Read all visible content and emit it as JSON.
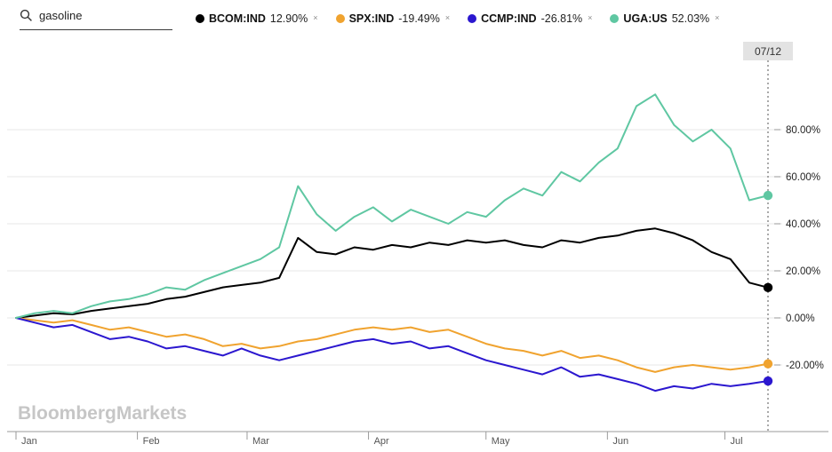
{
  "search": {
    "query": "gasoline"
  },
  "legend": {
    "close_glyph": "×"
  },
  "watermark": "BloombergMarkets",
  "chart_data": {
    "type": "line",
    "cursor_date": "07/12",
    "total_days": 192,
    "x_ticks": [
      {
        "label": "Jan",
        "day": 0
      },
      {
        "label": "Feb",
        "day": 31
      },
      {
        "label": "Mar",
        "day": 59
      },
      {
        "label": "Apr",
        "day": 90
      },
      {
        "label": "May",
        "day": 120
      },
      {
        "label": "Jun",
        "day": 151
      },
      {
        "label": "Jul",
        "day": 181
      }
    ],
    "y_ticks": [
      {
        "label": "80.00%",
        "value": 80
      },
      {
        "label": "60.00%",
        "value": 60
      },
      {
        "label": "40.00%",
        "value": 40
      },
      {
        "label": "20.00%",
        "value": 20
      },
      {
        "label": "0.00%",
        "value": 0
      },
      {
        "label": "-20.00%",
        "value": -20
      }
    ],
    "ylim": [
      -34,
      100
    ],
    "grid": true,
    "legend_position": "top",
    "series": [
      {
        "name": "BCOM:IND",
        "color": "#000000",
        "last_label": "12.90%",
        "values": [
          0,
          1,
          2,
          1.5,
          3,
          4,
          5,
          6,
          8,
          9,
          11,
          13,
          14,
          15,
          17,
          34,
          28,
          27,
          30,
          29,
          31,
          30,
          32,
          31,
          33,
          32,
          33,
          31,
          30,
          33,
          32,
          34,
          35,
          37,
          38,
          36,
          33,
          28,
          25,
          15,
          12.9
        ]
      },
      {
        "name": "SPX:IND",
        "color": "#f0a32f",
        "last_label": "-19.49%",
        "values": [
          0,
          -1,
          -2,
          -1,
          -3,
          -5,
          -4,
          -6,
          -8,
          -7,
          -9,
          -12,
          -11,
          -13,
          -12,
          -10,
          -9,
          -7,
          -5,
          -4,
          -5,
          -4,
          -6,
          -5,
          -8,
          -11,
          -13,
          -14,
          -16,
          -14,
          -17,
          -16,
          -18,
          -21,
          -23,
          -21,
          -20,
          -21,
          -22,
          -21,
          -19.49
        ]
      },
      {
        "name": "CCMP:IND",
        "color": "#2b17cf",
        "last_label": "-26.81%",
        "values": [
          0,
          -2,
          -4,
          -3,
          -6,
          -9,
          -8,
          -10,
          -13,
          -12,
          -14,
          -16,
          -13,
          -16,
          -18,
          -16,
          -14,
          -12,
          -10,
          -9,
          -11,
          -10,
          -13,
          -12,
          -15,
          -18,
          -20,
          -22,
          -24,
          -21,
          -25,
          -24,
          -26,
          -28,
          -31,
          -29,
          -30,
          -28,
          -29,
          -28,
          -26.81
        ]
      },
      {
        "name": "UGA:US",
        "color": "#5fc7a2",
        "last_label": "52.03%",
        "values": [
          0,
          2,
          3,
          2,
          5,
          7,
          8,
          10,
          13,
          12,
          16,
          19,
          22,
          25,
          30,
          56,
          44,
          37,
          43,
          47,
          41,
          46,
          43,
          40,
          45,
          43,
          50,
          55,
          52,
          62,
          58,
          66,
          72,
          90,
          95,
          82,
          75,
          80,
          72,
          50,
          52.03
        ]
      }
    ]
  }
}
